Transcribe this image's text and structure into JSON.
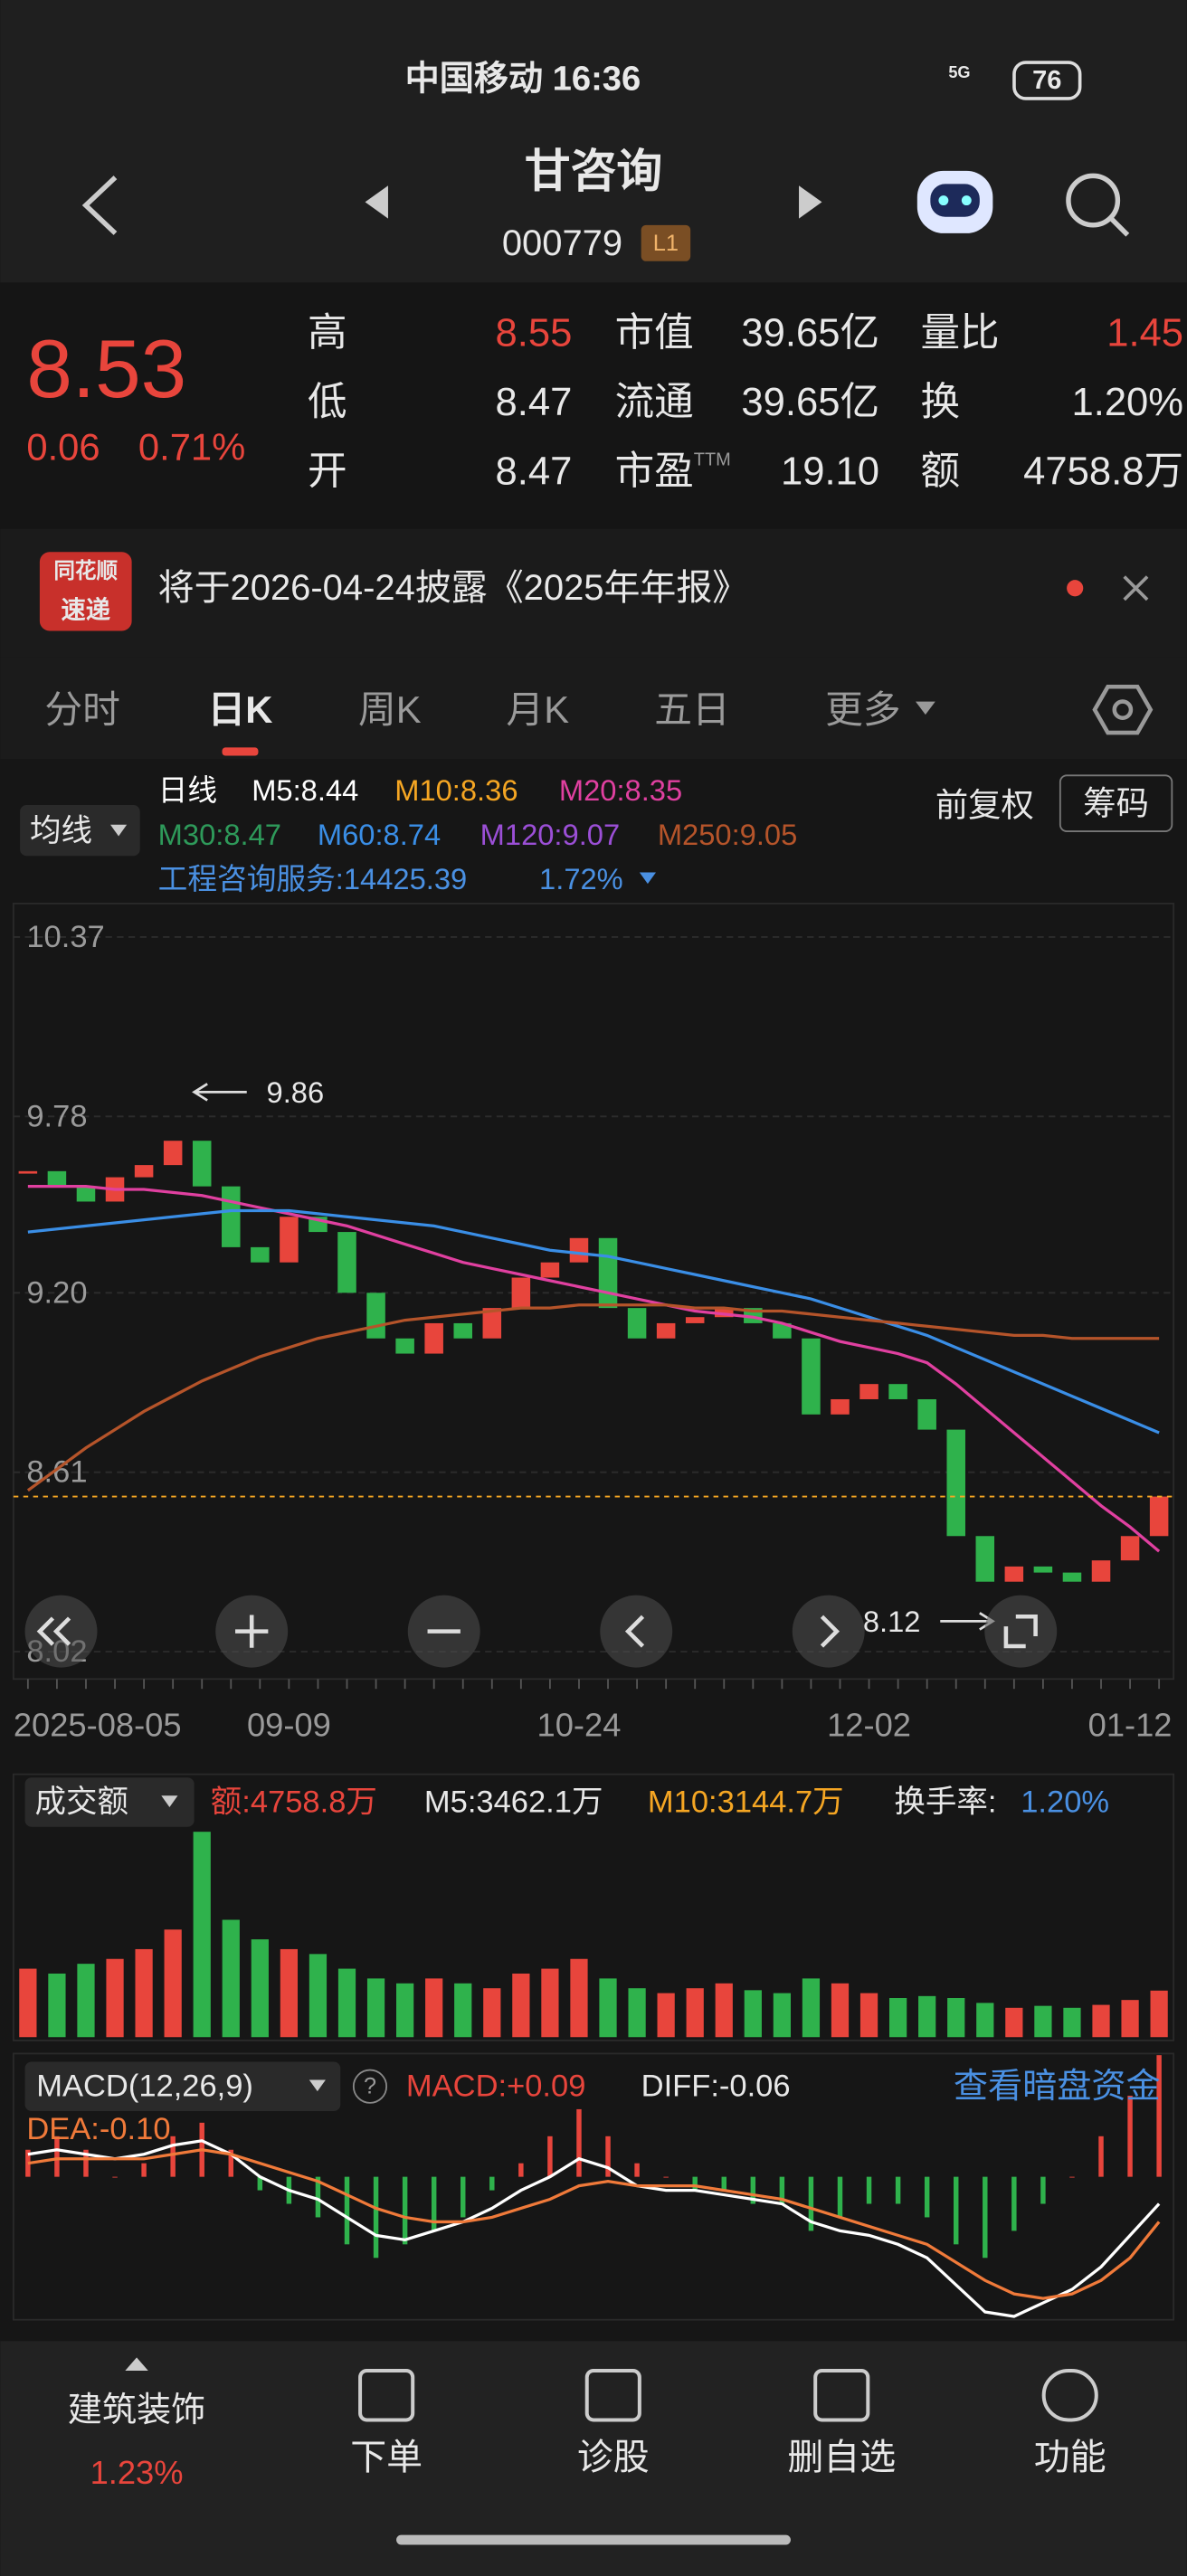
{
  "status_bar": {
    "carrier_time": "中国移动 16:36",
    "network": "5G",
    "battery": "76"
  },
  "header": {
    "title": "甘咨询",
    "code": "000779",
    "badge": "L1"
  },
  "quote": {
    "price": 8.53,
    "change": "0.06",
    "change_pct": "0.71%",
    "pe_sup": "TTM",
    "rows": [
      [
        "高",
        "8.55",
        "市值",
        "39.65亿",
        "量比",
        "1.45"
      ],
      [
        "低",
        "8.47",
        "流通",
        "39.65亿",
        "换",
        "1.20%"
      ],
      [
        "开",
        "8.47",
        "市盈",
        "19.10",
        "额",
        "4758.8万"
      ]
    ]
  },
  "notice": {
    "logo": [
      "同花顺",
      "速递"
    ],
    "text": "将于2026-04-24披露《2025年年报》"
  },
  "tabs": {
    "items": [
      "分时",
      "日K",
      "周K",
      "月K",
      "五日",
      "更多"
    ],
    "selected": 1
  },
  "indicator": {
    "selector": "均线",
    "adjust": "前复权",
    "chips": "筹码",
    "legend": [
      [
        "日线",
        "M5:8.44",
        "M10:8.36",
        "M20:8.35"
      ],
      [
        "M30:8.47",
        "M60:8.74",
        "M120:9.07",
        "M250:9.05"
      ]
    ],
    "legend_colors": [
      [
        "#ffffff",
        "#ffffff",
        "#f5a623",
        "#e040a0"
      ],
      [
        "#2e9a5a",
        "#3a8ee6",
        "#9b4fd6",
        "#b5542a"
      ]
    ],
    "sector": "工程咨询服务:14425.39",
    "sector_pct": "1.72%"
  },
  "chart_data": {
    "type": "candlestick",
    "categories": [
      "2025-08-05",
      null,
      null,
      null,
      null,
      null,
      null,
      null,
      null,
      "09-09",
      null,
      null,
      null,
      null,
      null,
      null,
      null,
      null,
      null,
      "10-24",
      null,
      null,
      null,
      null,
      null,
      null,
      null,
      null,
      null,
      "12-02",
      null,
      null,
      null,
      null,
      null,
      null,
      null,
      null,
      "01-12",
      null
    ],
    "closes": [
      9.6,
      9.55,
      9.5,
      9.58,
      9.62,
      9.7,
      9.55,
      9.35,
      9.3,
      9.45,
      9.4,
      9.2,
      9.05,
      9.0,
      9.1,
      9.05,
      9.15,
      9.25,
      9.3,
      9.38,
      9.15,
      9.05,
      9.1,
      9.12,
      9.15,
      9.1,
      9.05,
      8.8,
      8.85,
      8.9,
      8.85,
      8.75,
      8.4,
      8.25,
      8.3,
      8.28,
      8.25,
      8.32,
      8.4,
      8.53
    ],
    "up_color": "#e8453c",
    "down_color": "#2fb24c",
    "series": [
      {
        "color": "#e040a0",
        "values": [
          9.55,
          9.55,
          9.55,
          9.54,
          9.54,
          9.53,
          9.52,
          9.5,
          9.48,
          9.46,
          9.44,
          9.42,
          9.39,
          9.36,
          9.33,
          9.3,
          9.28,
          9.26,
          9.24,
          9.22,
          9.2,
          9.18,
          9.16,
          9.14,
          9.13,
          9.12,
          9.1,
          9.07,
          9.04,
          9.02,
          9.0,
          8.97,
          8.9,
          8.82,
          8.74,
          8.66,
          8.58,
          8.5,
          8.43,
          8.35
        ]
      },
      {
        "color": "#3a8ee6",
        "values": [
          9.4,
          9.41,
          9.42,
          9.43,
          9.44,
          9.45,
          9.46,
          9.47,
          9.47,
          9.47,
          9.46,
          9.45,
          9.44,
          9.43,
          9.42,
          9.4,
          9.38,
          9.36,
          9.34,
          9.33,
          9.32,
          9.3,
          9.28,
          9.26,
          9.24,
          9.22,
          9.2,
          9.18,
          9.15,
          9.12,
          9.09,
          9.06,
          9.02,
          8.98,
          8.94,
          8.9,
          8.86,
          8.82,
          8.78,
          8.74
        ]
      },
      {
        "color": "#b5542a",
        "values": [
          8.55,
          8.62,
          8.69,
          8.75,
          8.81,
          8.86,
          8.91,
          8.95,
          8.99,
          9.02,
          9.05,
          9.07,
          9.09,
          9.11,
          9.12,
          9.13,
          9.14,
          9.15,
          9.15,
          9.16,
          9.16,
          9.16,
          9.16,
          9.15,
          9.15,
          9.14,
          9.14,
          9.13,
          9.12,
          9.11,
          9.1,
          9.09,
          9.08,
          9.07,
          9.06,
          9.06,
          9.05,
          9.05,
          9.05,
          9.05
        ]
      }
    ],
    "ylim": [
      7.93,
      10.48
    ],
    "yticks": [
      10.37,
      9.78,
      {
        "value": 9.2,
        "label": "9.20"
      },
      8.61,
      8.02
    ],
    "grid": true,
    "annotations": [
      {
        "value": 9.86
      },
      {
        "value": 8.12
      }
    ]
  },
  "volume": {
    "selector": "成交额",
    "amount": "额:4758.8万",
    "m5": "M5:3462.1万",
    "m10": "M10:3144.7万",
    "turnover_label": "换手率:",
    "turnover": "1.20%",
    "values": [
      7000,
      6500,
      7500,
      8000,
      9000,
      11000,
      21000,
      12000,
      10000,
      9000,
      8500,
      7000,
      6000,
      5500,
      6000,
      5500,
      5000,
      6500,
      7000,
      8000,
      6000,
      5000,
      4500,
      5000,
      5500,
      4800,
      4500,
      6000,
      5500,
      4500,
      4000,
      4200,
      4000,
      3500,
      3000,
      3200,
      3000,
      3300,
      3800,
      4758.8
    ]
  },
  "macd": {
    "selector": "MACD(12,26,9)",
    "help": "?",
    "macd": "MACD:+0.09",
    "diff_label": "DIFF:-0.06",
    "dea_label": "DEA:-0.10",
    "link": "查看暗盘资金",
    "hist": [
      0.02,
      0.03,
      0.02,
      0.0,
      0.01,
      0.03,
      0.04,
      0.02,
      -0.01,
      -0.02,
      -0.03,
      -0.05,
      -0.06,
      -0.05,
      -0.04,
      -0.03,
      -0.01,
      0.01,
      0.03,
      0.05,
      0.03,
      0.01,
      0.0,
      -0.01,
      -0.01,
      -0.02,
      -0.02,
      -0.04,
      -0.03,
      -0.02,
      -0.02,
      -0.03,
      -0.05,
      -0.06,
      -0.04,
      -0.02,
      0.0,
      0.03,
      0.06,
      0.09
    ],
    "diff": [
      0.05,
      0.06,
      0.05,
      0.04,
      0.05,
      0.07,
      0.08,
      0.05,
      0.0,
      -0.03,
      -0.05,
      -0.09,
      -0.13,
      -0.14,
      -0.12,
      -0.1,
      -0.07,
      -0.03,
      0.0,
      0.04,
      0.02,
      -0.02,
      -0.03,
      -0.03,
      -0.04,
      -0.05,
      -0.06,
      -0.1,
      -0.12,
      -0.13,
      -0.15,
      -0.18,
      -0.24,
      -0.3,
      -0.31,
      -0.28,
      -0.25,
      -0.2,
      -0.13,
      -0.06
    ],
    "dea": [
      0.03,
      0.04,
      0.04,
      0.04,
      0.04,
      0.05,
      0.06,
      0.05,
      0.03,
      0.01,
      -0.01,
      -0.04,
      -0.07,
      -0.09,
      -0.1,
      -0.1,
      -0.09,
      -0.07,
      -0.05,
      -0.02,
      -0.01,
      -0.02,
      -0.02,
      -0.02,
      -0.03,
      -0.04,
      -0.05,
      -0.07,
      -0.09,
      -0.11,
      -0.13,
      -0.15,
      -0.19,
      -0.23,
      -0.26,
      -0.27,
      -0.26,
      -0.23,
      -0.18,
      -0.1
    ]
  },
  "bottom_bar": {
    "sector": "建筑装饰",
    "sector_pct": "1.23%",
    "items": [
      "下单",
      "诊股",
      "删自选",
      "功能"
    ]
  }
}
